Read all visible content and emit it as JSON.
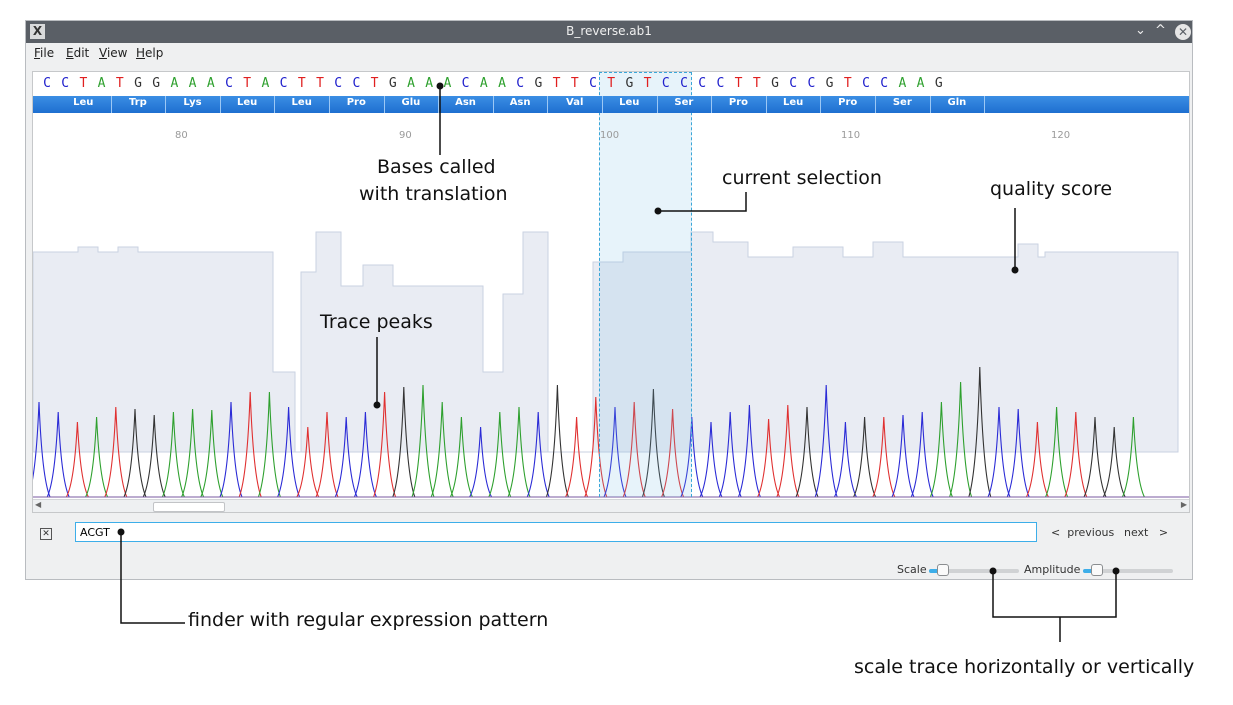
{
  "window": {
    "title": "B_reverse.ab1",
    "app_icon": "X",
    "minimize": "⌄",
    "maximize": "^",
    "close": "✕"
  },
  "menu": [
    "File",
    "Edit",
    "View",
    "Help"
  ],
  "sequence": {
    "bases": [
      "C",
      "C",
      "T",
      "A",
      "T",
      "G",
      "G",
      "A",
      "A",
      "A",
      "C",
      "T",
      "A",
      "C",
      "T",
      "T",
      "C",
      "C",
      "T",
      "G",
      "A",
      "A",
      "A",
      "C",
      "A",
      "A",
      "C",
      "G",
      "T",
      "T",
      "C",
      "T",
      "G",
      "T",
      "C",
      "C",
      "C",
      "C",
      "T",
      "T",
      "G",
      "C",
      "C",
      "G",
      "T",
      "C",
      "C",
      "A",
      "A",
      "G"
    ],
    "amino_acids": [
      "Leu",
      "Trp",
      "Lys",
      "Leu",
      "Leu",
      "Pro",
      "Glu",
      "Asn",
      "Asn",
      "Val",
      "Leu",
      "Ser",
      "Pro",
      "Leu",
      "Pro",
      "Ser",
      "Gln"
    ],
    "positions": [
      "80",
      "90",
      "100",
      "110",
      "120"
    ],
    "base_colors": {
      "A": "#2ea02e",
      "C": "#2020cc",
      "G": "#333333",
      "T": "#e02020"
    }
  },
  "finder": {
    "value": "ACGT",
    "previous": "previous",
    "next": "next",
    "prev_icon": "<",
    "next_icon": ">"
  },
  "controls": {
    "scale_label": "Scale",
    "scale_value": 0.15,
    "amplitude_label": "Amplitude",
    "amplitude_value": 0.15
  },
  "annotations": {
    "bases": [
      "Bases called",
      "with translation"
    ],
    "selection": "current selection",
    "quality": "quality score",
    "peaks": "Trace peaks",
    "finder": "finder with regular expression pattern",
    "scale": "scale trace horizontally or vertically"
  }
}
